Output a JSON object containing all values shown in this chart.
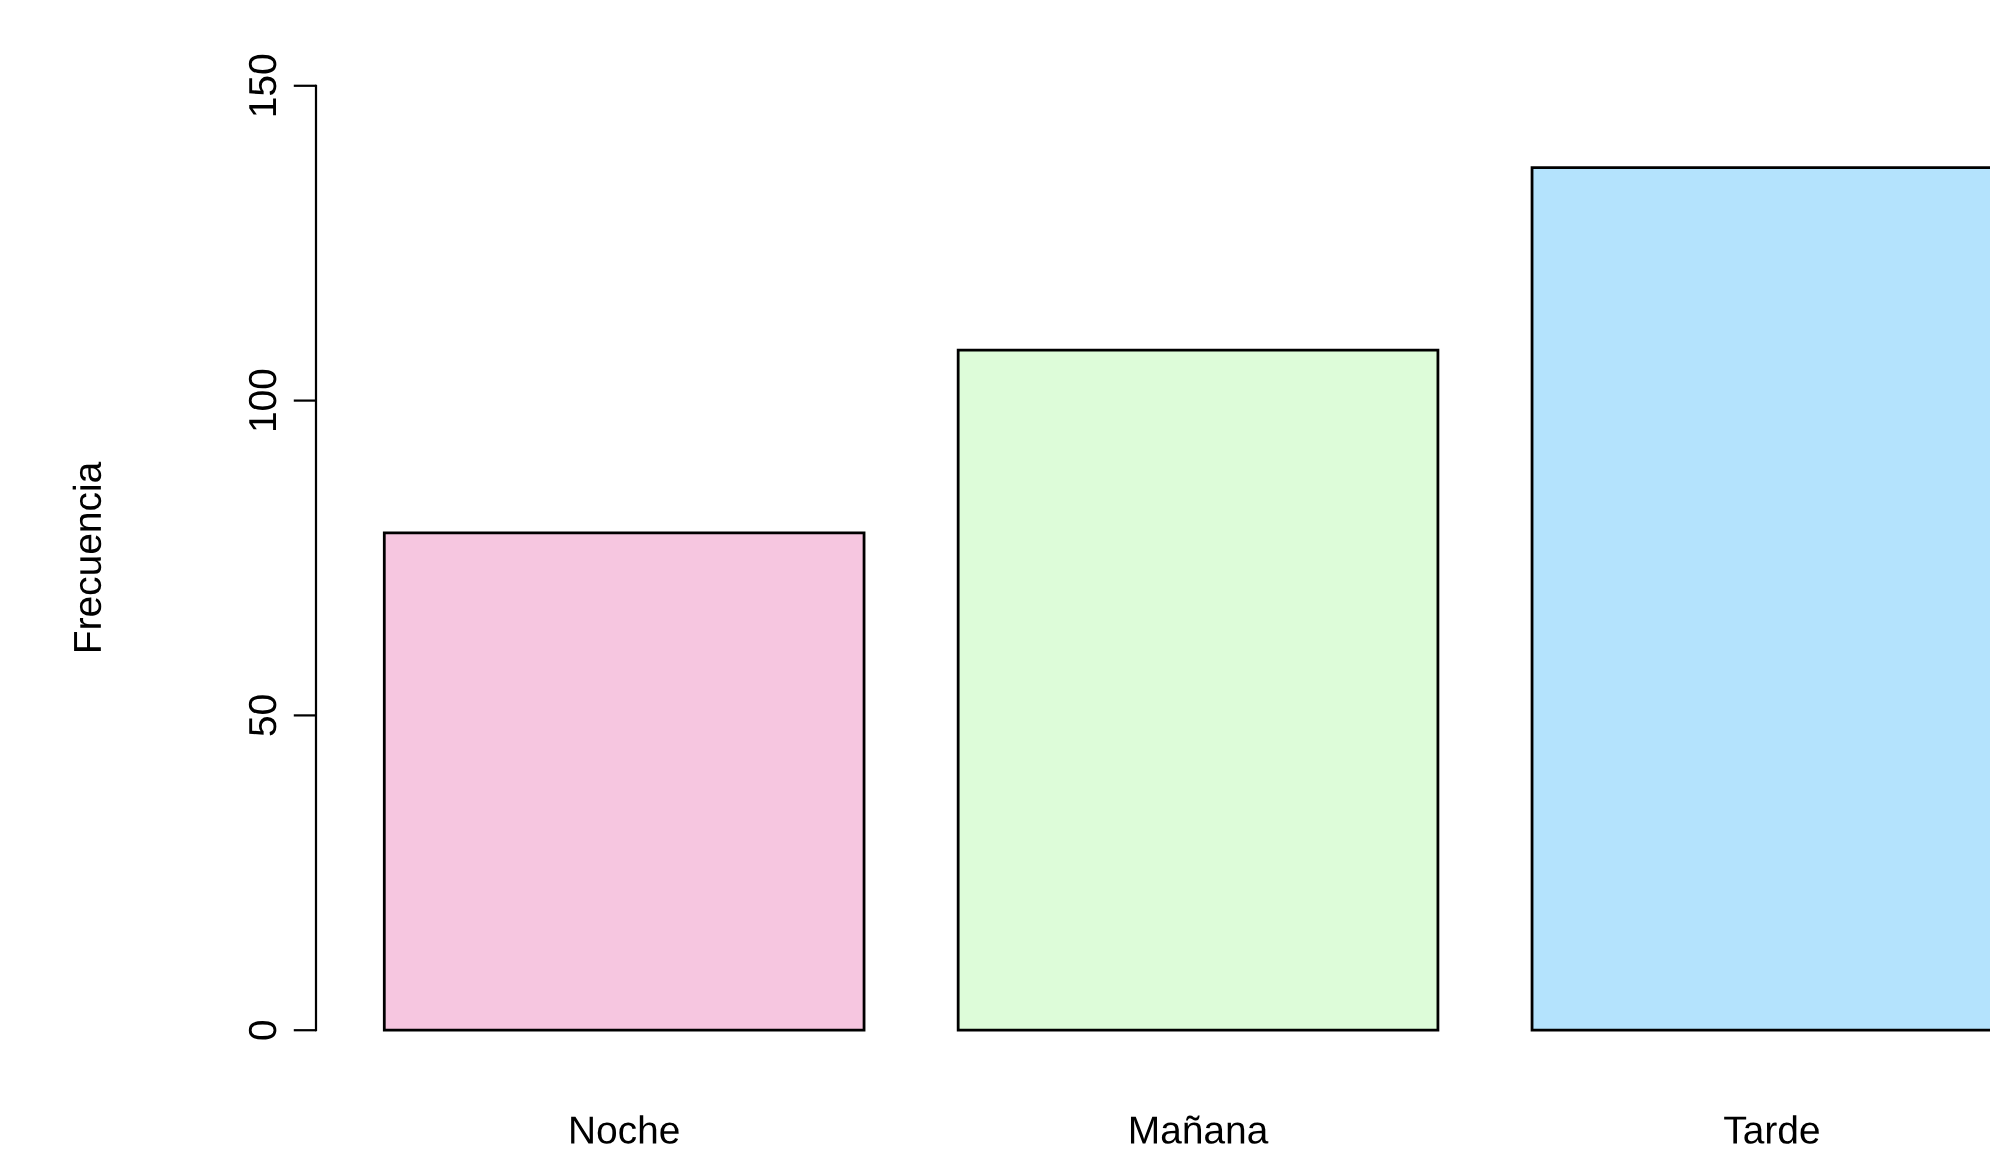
{
  "chart_data": {
    "type": "bar",
    "ylabel": "Frecuencia",
    "categories": [
      "Noche",
      "Mañana",
      "Tarde"
    ],
    "values": [
      79,
      108,
      137
    ],
    "colors": [
      "#f6c6e0",
      "#ddfcd9",
      "#b4e3fd"
    ],
    "ylim": [
      0,
      150
    ],
    "yticks": [
      0,
      50,
      100,
      150
    ],
    "grid": false
  }
}
